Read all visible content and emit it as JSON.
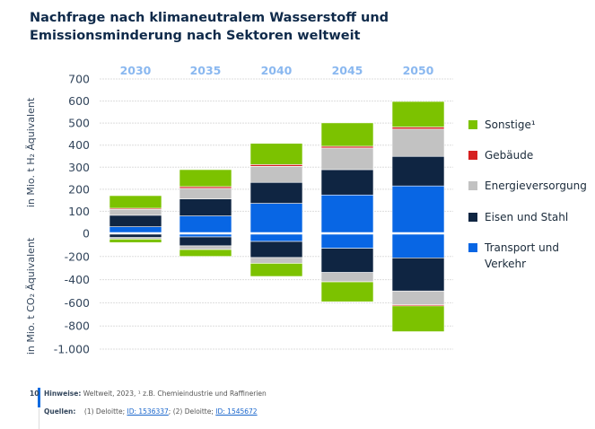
{
  "title": "Nachfrage nach klimaneutralem Wasserstoff und Emissionsminderung nach Sektoren weltweit",
  "chart_data": {
    "type": "bar",
    "stacked": true,
    "categories": [
      "2030",
      "2035",
      "2040",
      "2045",
      "2050"
    ],
    "ylabel_top": "in Mio. t H₂ Äquivalent",
    "ylabel_bottom": "in Mio. t CO₂ Äquivalent",
    "yticks_top": [
      "700",
      "600",
      "500",
      "400",
      "300",
      "200",
      "100",
      "0"
    ],
    "yticks_bottom": [
      "-200",
      "-400",
      "-600",
      "-800",
      "-1.000"
    ],
    "ylim_top": [
      0,
      700
    ],
    "ylim_bottom": [
      -1000,
      0
    ],
    "grid": true,
    "legend_position": "right",
    "series": [
      {
        "name": "Transport und Verkehr",
        "color": "#0866e4",
        "values": [
          30,
          79,
          136,
          174,
          215
        ],
        "reduction": [
          -3,
          -31,
          -70,
          -129,
          -212
        ]
      },
      {
        "name": "Eisen und Stahl",
        "color": "#0f2542",
        "values": [
          52,
          77,
          95,
          115,
          134
        ],
        "reduction": [
          -33,
          -77,
          -139,
          -209,
          -286
        ]
      },
      {
        "name": "Energieversorgung",
        "color": "#c2c2c2",
        "values": [
          27,
          48,
          73,
          98,
          124
        ],
        "reduction": [
          -13,
          -31,
          -49,
          -80,
          -119
        ]
      },
      {
        "name": "Gebäude",
        "color": "#d62020",
        "values": [
          5,
          8,
          8,
          8,
          9
        ],
        "reduction": [
          -1,
          -1,
          -1,
          -1,
          -10
        ]
      },
      {
        "name": "Sonstige¹",
        "color": "#7cc200",
        "values": [
          57,
          77,
          96,
          106,
          116
        ],
        "reduction": [
          -30,
          -59,
          -113,
          -172,
          -222
        ]
      }
    ]
  },
  "footer": {
    "page": "10",
    "notes_label": "Hinweise:",
    "notes": "Weltweit, 2023, ¹ z.B. Chemieindustrie und Raffinerien",
    "sources_label": "Quellen:",
    "source1": "(1) Deloitte; ",
    "link1": "ID: 1536337",
    "source2": "; (2) Deloitte; ",
    "link2": "ID: 1545672"
  }
}
